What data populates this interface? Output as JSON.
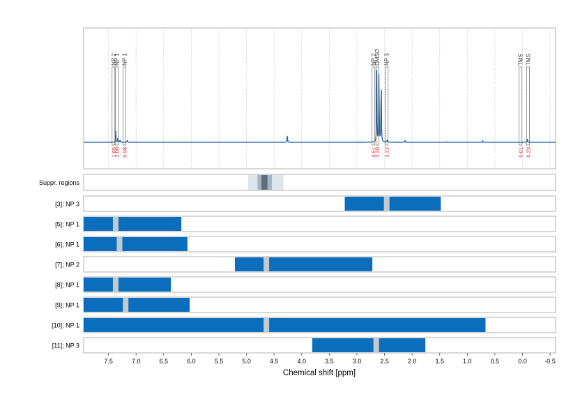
{
  "chart_data": {
    "type": "nmr-spectrum-with-range-tracks",
    "xlabel": "Chemical shift [ppm]",
    "xlim": [
      7.95,
      -0.6
    ],
    "x_reversed": true,
    "grid": "vertical dotted",
    "ticks": [
      7.5,
      7.0,
      6.5,
      6.0,
      5.5,
      5.0,
      4.5,
      4.0,
      3.5,
      3.0,
      2.5,
      2.0,
      1.5,
      1.0,
      0.5,
      0.0,
      -0.5
    ],
    "tick_labels": [
      "7.5",
      "7.0",
      "6.5",
      "6.0",
      "5.5",
      "5.0",
      "4.5",
      "4.0",
      "3.5",
      "3.0",
      "2.5",
      "2.0",
      "1.5",
      "1.0",
      "0.5",
      "0.0",
      "-0.5"
    ],
    "spectrum": {
      "color": "#1f5fa0",
      "peaks": [
        {
          "x": 7.37,
          "h": 0.16
        },
        {
          "x": 7.33,
          "h": 0.06
        },
        {
          "x": 7.29,
          "h": 0.04
        },
        {
          "x": 7.16,
          "h": 0.03
        },
        {
          "x": 4.26,
          "h": 0.11
        },
        {
          "x": 2.64,
          "h": 0.95
        },
        {
          "x": 2.6,
          "h": 1.0
        },
        {
          "x": 2.56,
          "h": 0.98
        },
        {
          "x": 2.45,
          "h": 0.03
        },
        {
          "x": 2.13,
          "h": 0.03
        },
        {
          "x": 1.38,
          "h": 0.01
        },
        {
          "x": 0.72,
          "h": 0.02
        },
        {
          "x": -0.09,
          "h": 0.05
        }
      ]
    },
    "annotations": [
      {
        "x": 7.41,
        "label": "NP 2",
        "integral": "1.85"
      },
      {
        "x": 7.35,
        "label": "NP 1",
        "integral": "1.00"
      },
      {
        "x": 7.21,
        "label": "NP 1",
        "integral": "0.98"
      },
      {
        "x": 2.7,
        "label": "NP 2",
        "integral": "3.51"
      },
      {
        "x": 2.63,
        "label": "DMSO",
        "integral": "1.20"
      },
      {
        "x": 2.46,
        "label": "NP 3",
        "integral": "3.22"
      },
      {
        "x": 0.04,
        "label": "TMS",
        "integral": "0.01"
      },
      {
        "x": -0.1,
        "label": "TMS",
        "integral": "0.23"
      }
    ],
    "suppression": {
      "label": "Suppr. regions",
      "outer": [
        4.97,
        4.33
      ],
      "mid": [
        4.8,
        4.54
      ],
      "inner": [
        4.73,
        4.62
      ]
    },
    "tracks": [
      {
        "label": "[3]; NP 3",
        "bar": [
          3.22,
          1.48
        ],
        "marker": 2.46
      },
      {
        "label": "[5]; NP 1",
        "bar": [
          7.95,
          6.18
        ],
        "marker": 7.37
      },
      {
        "label": "[6]; NP 1",
        "bar": [
          7.95,
          6.07
        ],
        "marker": 7.3
      },
      {
        "label": "[7]; NP 2",
        "bar": [
          5.21,
          2.72
        ],
        "marker": 4.64
      },
      {
        "label": "[8]; NP 1",
        "bar": [
          7.95,
          6.37
        ],
        "marker": 7.37
      },
      {
        "label": "[9]; NP 1",
        "bar": [
          7.95,
          6.03
        ],
        "marker": 7.19
      },
      {
        "label": "[10]; NP 1",
        "bar": [
          7.95,
          0.67
        ],
        "marker": 4.64
      },
      {
        "label": "[11]; NP 3",
        "bar": [
          3.81,
          1.76
        ],
        "marker": 2.65
      }
    ],
    "colors": {
      "bar": "#0a6ebd",
      "marker": "#c3c9d0",
      "label": "#333333",
      "integral": "#e0202a",
      "supp_outer": "#dfe5ec",
      "supp_mid": "#a6b3c0",
      "supp_inner": "#5f6d7a"
    }
  }
}
